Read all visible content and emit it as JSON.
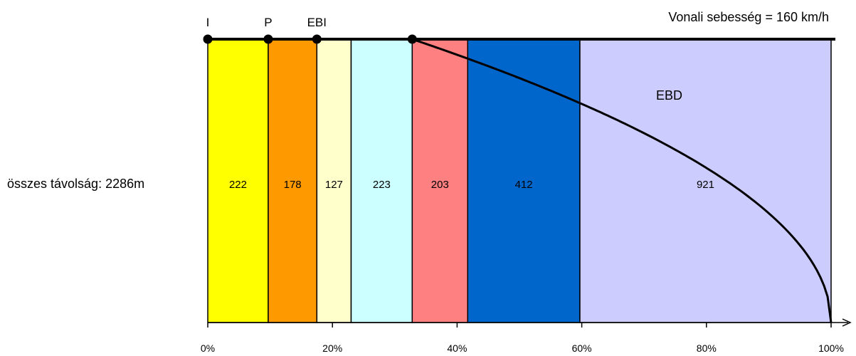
{
  "chart_data": {
    "type": "bar",
    "title": "Vonali sebesség = 160 km/h",
    "ylabel": "összes távolság: 2286m",
    "segments": [
      {
        "value": 222,
        "start_pct": 0,
        "end_pct": 9.7,
        "color": "#ffff00"
      },
      {
        "value": 178,
        "start_pct": 9.7,
        "end_pct": 17.5,
        "color": "#ff9900"
      },
      {
        "value": 127,
        "start_pct": 17.5,
        "end_pct": 23.0,
        "color": "#ffffcc"
      },
      {
        "value": 223,
        "start_pct": 23.0,
        "end_pct": 32.8,
        "color": "#ccffff"
      },
      {
        "value": 203,
        "start_pct": 32.8,
        "end_pct": 41.7,
        "color": "#ff8080"
      },
      {
        "value": 412,
        "start_pct": 41.7,
        "end_pct": 59.7,
        "color": "#0066cc"
      },
      {
        "value": 921,
        "start_pct": 59.7,
        "end_pct": 100,
        "color": "#ccccff"
      }
    ],
    "markers": [
      {
        "label": "I",
        "pct": 0
      },
      {
        "label": "P",
        "pct": 9.7
      },
      {
        "label": "EBI",
        "pct": 17.5
      },
      {
        "label": "",
        "pct": 32.8
      }
    ],
    "curve_label": "EBD",
    "curve_start_pct": 32.8,
    "x_ticks": [
      "0%",
      "20%",
      "40%",
      "60%",
      "80%",
      "100%"
    ],
    "x_tick_values": [
      0,
      20,
      40,
      60,
      80,
      100
    ],
    "xlim": [
      0,
      100
    ]
  }
}
